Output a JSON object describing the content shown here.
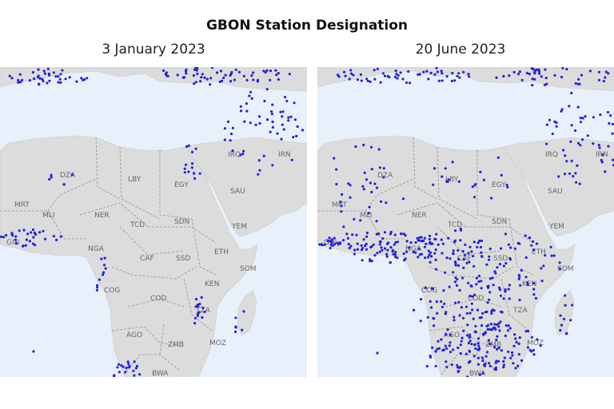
{
  "title": "GBON Station Designation",
  "colors": {
    "ocean": "#e8f1fb",
    "land": "#dcdcdc",
    "station": "#2222dd"
  },
  "panels": [
    {
      "title": "3 January 2023",
      "density": "sparse"
    },
    {
      "title": "20 June 2023",
      "density": "dense"
    }
  ],
  "country_labels": [
    "DZA",
    "LBY",
    "EGY",
    "IRQ",
    "IRN",
    "SAU",
    "YEM",
    "MRT",
    "MLI",
    "NER",
    "TCD",
    "SDN",
    "GIN",
    "NGA",
    "CAF",
    "SSD",
    "ETH",
    "SOM",
    "KEN",
    "COG",
    "COD",
    "TZA",
    "AGO",
    "ZMB",
    "MOZ",
    "BWA"
  ]
}
